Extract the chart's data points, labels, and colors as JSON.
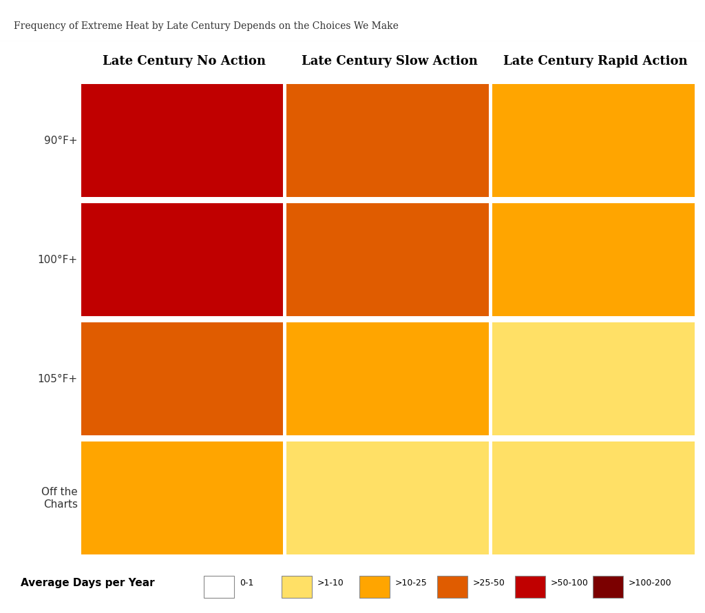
{
  "title": "Frequency of Extreme Heat by Late Century Depends on the Choices We Make",
  "title_bar_color": "#6ab04c",
  "background_color": "#ffffff",
  "col_titles": [
    "Late Century No Action",
    "Late Century Slow Action",
    "Late Century Rapid Action"
  ],
  "row_labels": [
    "90°F+",
    "100°F+",
    "105°F+",
    "Off the\nCharts"
  ],
  "legend_title": "Average Days per Year",
  "legend_labels": [
    "0-1",
    ">1-10",
    ">10-25",
    ">25-50",
    ">50-100",
    ">100-200"
  ],
  "legend_colors": [
    "#ffffff",
    "#ffe066",
    "#ffa500",
    "#e05c00",
    "#c00000",
    "#7b0000"
  ],
  "legend_edge_color": "#888888",
  "map_colors": {
    "row0_col0": {
      "base": "#c00000",
      "hot_zones": "#7b0000"
    },
    "row0_col1": {
      "base": "#e05c00",
      "hot_zones": "#c00000"
    },
    "row0_col2": {
      "base": "#ffa500",
      "hot_zones": "#e05c00"
    },
    "row1_col0": {
      "base": "#c00000",
      "hot_zones": "#7b0000"
    },
    "row1_col1": {
      "base": "#e05c00",
      "hot_zones": "#c00000"
    },
    "row1_col2": {
      "base": "#ffa500",
      "hot_zones": "#e05c00"
    },
    "row2_col0": {
      "base": "#e05c00",
      "hot_zones": "#c00000"
    },
    "row2_col1": {
      "base": "#ffa500",
      "hot_zones": "#e05c00"
    },
    "row2_col2": {
      "base": "#ffe066",
      "hot_zones": "#ffa500"
    },
    "row3_col0": {
      "base": "#ffa500",
      "hot_zones": "#e05c00"
    },
    "row3_col1": {
      "base": "#ffe066",
      "hot_zones": "#ffa500"
    },
    "row3_col2": {
      "base": "#ffe066",
      "hot_zones": "#ffe066"
    }
  },
  "col_title_fontsize": 13,
  "row_label_fontsize": 11,
  "title_fontsize": 10,
  "legend_title_fontsize": 11,
  "legend_fontsize": 9,
  "green_bar_height": 0.012,
  "subtitle_line_color": "#cccccc"
}
